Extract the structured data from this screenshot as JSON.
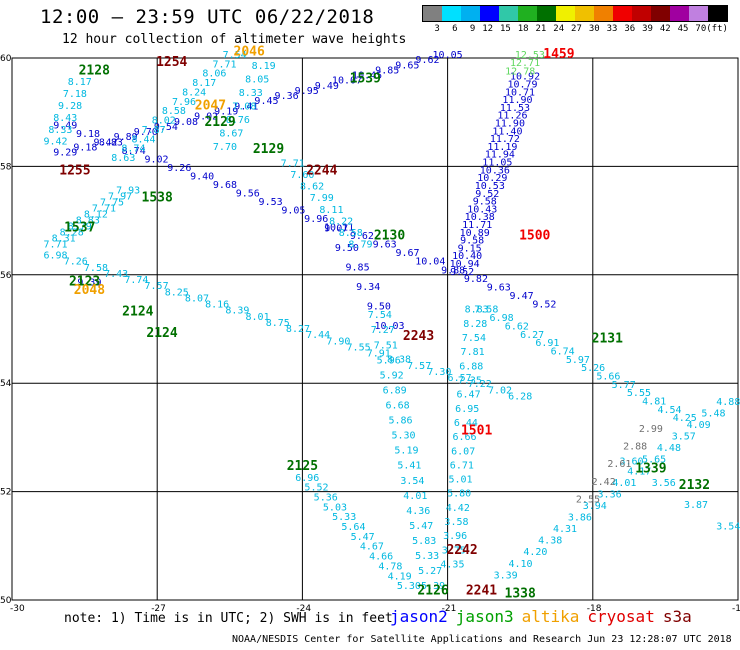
{
  "header": {
    "title": "12:00 – 23:59 UTC 06/22/2018",
    "subtitle": "12 hour collection of altimeter wave heights"
  },
  "colorbar": {
    "unit": "(ft)",
    "ticks": [
      "3",
      "6",
      "9",
      "12",
      "15",
      "18",
      "21",
      "24",
      "27",
      "30",
      "33",
      "36",
      "39",
      "42",
      "45",
      "70"
    ],
    "colors": [
      "#808080",
      "#00e0ff",
      "#00b0f0",
      "#0000ff",
      "#30c8a8",
      "#20b020",
      "#007000",
      "#f0f000",
      "#f0c000",
      "#f08000",
      "#f00000",
      "#c00000",
      "#800000",
      "#a000a0",
      "#c080e0",
      "#000000"
    ]
  },
  "axes": {
    "x_ticks": [
      -30,
      -27,
      -24,
      -21,
      -18,
      -15
    ],
    "x_labels": [
      "-30",
      "-27",
      "-24",
      "-21",
      "-18",
      "-15"
    ],
    "y_ticks": [
      50,
      52,
      54,
      56,
      58,
      60
    ],
    "y_labels": [
      "50",
      "52",
      "54",
      "56",
      "58",
      "60"
    ],
    "lon_range": [
      -30,
      -15
    ],
    "lat_range": [
      50,
      60
    ]
  },
  "chart_data": {
    "type": "scatter",
    "x_unit": "degrees longitude",
    "y_unit": "degrees latitude",
    "track_labels": [
      {
        "text": "1254",
        "lon": -26.7,
        "lat": 59.85,
        "color": "#800000"
      },
      {
        "text": "2046",
        "lon": -25.1,
        "lat": 60.05,
        "color": "#f0a000"
      },
      {
        "text": "2128",
        "lon": -28.3,
        "lat": 59.7,
        "color": "#007000"
      },
      {
        "text": "2047",
        "lon": -25.9,
        "lat": 59.05,
        "color": "#f0a000"
      },
      {
        "text": "2129",
        "lon": -25.7,
        "lat": 58.75,
        "color": "#007000"
      },
      {
        "text": "2129",
        "lon": -24.7,
        "lat": 58.25,
        "color": "#007000"
      },
      {
        "text": "1539",
        "lon": -22.7,
        "lat": 59.55,
        "color": "#007000"
      },
      {
        "text": "1255",
        "lon": -28.7,
        "lat": 57.85,
        "color": "#800000"
      },
      {
        "text": "2244",
        "lon": -23.6,
        "lat": 57.85,
        "color": "#800000"
      },
      {
        "text": "1538",
        "lon": -27.0,
        "lat": 57.35,
        "color": "#007000"
      },
      {
        "text": "1537",
        "lon": -28.6,
        "lat": 56.8,
        "color": "#007000"
      },
      {
        "text": "2130",
        "lon": -22.2,
        "lat": 56.65,
        "color": "#007000"
      },
      {
        "text": "1500",
        "lon": -19.2,
        "lat": 56.65,
        "color": "#f00000"
      },
      {
        "text": "2123",
        "lon": -28.5,
        "lat": 55.8,
        "color": "#007000"
      },
      {
        "text": "2048",
        "lon": -28.4,
        "lat": 55.65,
        "color": "#f0a000"
      },
      {
        "text": "2124",
        "lon": -27.4,
        "lat": 55.25,
        "color": "#007000"
      },
      {
        "text": "2124",
        "lon": -26.9,
        "lat": 54.85,
        "color": "#007000"
      },
      {
        "text": "2243",
        "lon": -21.6,
        "lat": 54.8,
        "color": "#800000"
      },
      {
        "text": "2131",
        "lon": -17.7,
        "lat": 54.75,
        "color": "#007000"
      },
      {
        "text": "1501",
        "lon": -20.4,
        "lat": 53.05,
        "color": "#f00000"
      },
      {
        "text": "2125",
        "lon": -24.0,
        "lat": 52.4,
        "color": "#007000"
      },
      {
        "text": "1339",
        "lon": -16.8,
        "lat": 52.35,
        "color": "#007000"
      },
      {
        "text": "2132",
        "lon": -15.9,
        "lat": 52.05,
        "color": "#007000"
      },
      {
        "text": "2242",
        "lon": -20.7,
        "lat": 50.85,
        "color": "#800000"
      },
      {
        "text": "2126",
        "lon": -21.3,
        "lat": 50.1,
        "color": "#007000"
      },
      {
        "text": "2241",
        "lon": -20.3,
        "lat": 50.1,
        "color": "#800000"
      },
      {
        "text": "1338",
        "lon": -19.5,
        "lat": 50.05,
        "color": "#007000"
      },
      {
        "text": "1459",
        "lon": -18.7,
        "lat": 60.0,
        "color": "#f00000"
      }
    ],
    "tracks": [
      {
        "name": "jason2",
        "color": "#0000cc",
        "start": [
          -21.0,
          60.0
        ],
        "end": [
          -28.9,
          58.2
        ],
        "values": [
          "10.05",
          "9.62",
          "9.65",
          "9.85",
          "10.45",
          "10.07",
          "9.49",
          "9.95",
          "9.36",
          "9.45",
          "9.41",
          "9.19",
          "9.02",
          "9.08",
          "9.54",
          "9.70",
          "9.89",
          "9.42",
          "9.18",
          "9.29"
        ]
      },
      {
        "name": "jason2",
        "color": "#0000cc",
        "start": [
          -28.9,
          58.7
        ],
        "end": [
          -19.0,
          55.4
        ],
        "values": [
          "9.49",
          "9.18",
          "8.83",
          "8.74",
          "9.02",
          "9.26",
          "9.40",
          "9.68",
          "9.56",
          "9.53",
          "9.05",
          "9.96",
          "10.11",
          "9.62",
          "9.63",
          "9.67",
          "10.04",
          "9.88",
          "9.82",
          "9.63",
          "9.47",
          "9.52"
        ]
      },
      {
        "name": "jason2",
        "color": "#0000cc",
        "start": [
          -23.3,
          56.8
        ],
        "end": [
          -22.2,
          55.0
        ],
        "values": [
          "9.07",
          "9.50",
          "9.85",
          "9.34",
          "9.50",
          "10.03"
        ]
      },
      {
        "name": "jason2",
        "color": "#0000cc",
        "start": [
          -19.4,
          59.6
        ],
        "end": [
          -20.7,
          56.0
        ],
        "values": [
          "10.92",
          "10.79",
          "10.71",
          "11.90",
          "11.53",
          "11.26",
          "11.90",
          "11.40",
          "11.72",
          "11.19",
          "11.94",
          "11.05",
          "10.36",
          "10.29",
          "10.53",
          "9.52",
          "9.58",
          "10.43",
          "10.38",
          "11.71",
          "10.89",
          "9.58",
          "9.15",
          "10.40",
          "10.94",
          "9.52"
        ]
      },
      {
        "name": "jason2",
        "color": "#0000cc",
        "start": [
          -28.4,
          55.8
        ],
        "end": [
          -27.6,
          55.2
        ],
        "values": [
          "9.39"
        ]
      },
      {
        "name": "jason3",
        "color": "#00b8e0",
        "start": [
          -28.6,
          59.5
        ],
        "end": [
          -29.1,
          58.4
        ],
        "values": [
          "8.17",
          "7.18",
          "9.28",
          "8.43",
          "8.33",
          "9.42"
        ]
      },
      {
        "name": "jason3",
        "color": "#00b8e0",
        "start": [
          -25.4,
          60.0
        ],
        "end": [
          -27.7,
          58.1
        ],
        "values": [
          "7.54",
          "7.71",
          "8.06",
          "8.17",
          "8.24",
          "7.96",
          "8.58",
          "8.02",
          "7.87",
          "8.44",
          "8.74",
          "8.63"
        ]
      },
      {
        "name": "jason3",
        "color": "#00b8e0",
        "start": [
          -24.8,
          59.8
        ],
        "end": [
          -25.6,
          58.3
        ],
        "values": [
          "8.19",
          "8.05",
          "8.33",
          "7.08",
          "8.76",
          "8.67",
          "7.70"
        ]
      },
      {
        "name": "jason3",
        "color": "#00b8e0",
        "start": [
          -27.6,
          57.5
        ],
        "end": [
          -29.1,
          56.5
        ],
        "values": [
          "7.93",
          "7.97",
          "7.75",
          "7.71",
          "8.12",
          "8.83",
          "8.79",
          "8.28",
          "8.31",
          "7.71"
        ]
      },
      {
        "name": "jason3",
        "color": "#00b8e0",
        "start": [
          -29.1,
          56.3
        ],
        "end": [
          -19.5,
          53.7
        ],
        "values": [
          "6.98",
          "7.26",
          "7.58",
          "7.43",
          "7.74",
          "7.57",
          "8.25",
          "8.07",
          "8.16",
          "8.39",
          "8.01",
          "8.75",
          "8.27",
          "7.44",
          "7.90",
          "7.55",
          "7.91",
          "8.38",
          "7.57",
          "7.30",
          "6.57",
          "7.22",
          "7.02",
          "6.28"
        ]
      },
      {
        "name": "jason3",
        "color": "#00b8e0",
        "start": [
          -24.2,
          58.0
        ],
        "end": [
          -22.8,
          56.5
        ],
        "values": [
          "7.71",
          "7.60",
          "8.62",
          "7.99",
          "8.11",
          "8.22",
          "8.58",
          "8.79"
        ]
      },
      {
        "name": "jason3",
        "color": "#00b8e0",
        "start": [
          -20.2,
          55.3
        ],
        "end": [
          -16.1,
          53.3
        ],
        "values": [
          "7.58",
          "6.98",
          "6.62",
          "6.27",
          "6.91",
          "6.74",
          "5.97",
          "5.26",
          "5.66",
          "5.77",
          "5.55",
          "4.81",
          "4.54",
          "4.25"
        ]
      },
      {
        "name": "jason3",
        "color": "#00b8e0",
        "start": [
          -22.4,
          55.2
        ],
        "end": [
          -21.3,
          50.2
        ],
        "values": [
          "7.54",
          "7.27",
          "7.51",
          "5.96",
          "5.92",
          "6.89",
          "6.68",
          "5.86",
          "5.30",
          "5.19",
          "5.41",
          "3.54",
          "4.01",
          "4.36",
          "5.47",
          "5.83",
          "5.33",
          "5.27",
          "5.39"
        ]
      },
      {
        "name": "jason3",
        "color": "#00b8e0",
        "start": [
          -20.4,
          55.3
        ],
        "end": [
          -20.9,
          50.6
        ],
        "values": [
          "8.83",
          "8.28",
          "7.54",
          "7.81",
          "6.88",
          "7.35",
          "6.47",
          "6.95",
          "6.44",
          "6.66",
          "6.07",
          "6.71",
          "5.01",
          "5.80",
          "4.42",
          "3.58",
          "3.96",
          "3.75",
          "4.35"
        ]
      },
      {
        "name": "jason3",
        "color": "#00b8e0",
        "start": [
          -23.9,
          52.2
        ],
        "end": [
          -21.8,
          50.2
        ],
        "values": [
          "6.96",
          "5.52",
          "5.36",
          "5.03",
          "5.33",
          "5.64",
          "5.47",
          "4.67",
          "4.66",
          "4.78",
          "4.19",
          "5.30"
        ]
      },
      {
        "name": "jason3",
        "color": "#00b8e0",
        "start": [
          -19.8,
          50.4
        ],
        "end": [
          -15.2,
          53.6
        ],
        "values": [
          "3.39",
          "4.10",
          "4.20",
          "4.38",
          "4.31",
          "3.86",
          "3.94",
          "3.36",
          "4.01",
          "4.17",
          "5.65",
          "4.48",
          "3.57",
          "4.09",
          "5.48",
          "4.88"
        ]
      },
      {
        "name": "jason3",
        "color": "#00b8e0",
        "start": [
          -17.2,
          52.5
        ],
        "end": [
          -15.2,
          51.3
        ],
        "values": [
          "3.60",
          "3.56",
          "3.87",
          "3.54"
        ]
      },
      {
        "name": "jason3-high",
        "color": "#60d860",
        "start": [
          -19.3,
          60.0
        ],
        "end": [
          -19.5,
          59.7
        ],
        "values": [
          "12.53",
          "12.71",
          "12.78"
        ]
      },
      {
        "name": "cryosat",
        "color": "#707070",
        "start": [
          -16.8,
          53.1
        ],
        "end": [
          -18.1,
          51.8
        ],
        "values": [
          "2.99",
          "2.88",
          "2.61",
          "2.42",
          "2.55"
        ]
      },
      {
        "name": "altika",
        "color": "#f0a000",
        "start": [
          -25.2,
          59.9
        ],
        "end": [
          -25.2,
          59.9
        ],
        "values": []
      }
    ]
  },
  "footer": {
    "note": "note: 1) Time is in UTC; 2) SWH is in feet",
    "legend": [
      {
        "name": "jason2",
        "color": "#0000ff"
      },
      {
        "name": "jason3",
        "color": "#00a000"
      },
      {
        "name": "altika",
        "color": "#f0a000"
      },
      {
        "name": "cryosat",
        "color": "#e00000"
      },
      {
        "name": "s3a",
        "color": "#800000"
      }
    ],
    "credit": "NOAA/NESDIS Center for Satellite Applications and Research   Jun 23 12:28:07 UTC 2018"
  }
}
